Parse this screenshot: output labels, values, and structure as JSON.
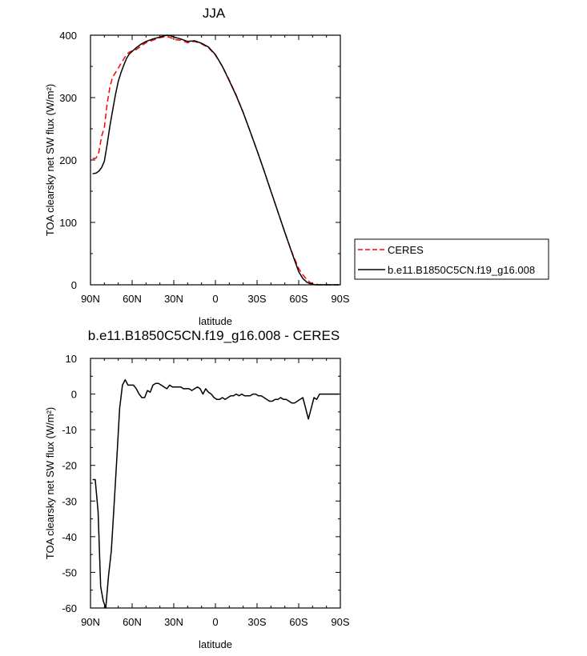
{
  "chart_data": [
    {
      "type": "line",
      "title": "JJA",
      "xlabel": "latitude",
      "ylabel": "TOA clearsky net SW flux (W/m²)",
      "xlim": [
        90,
        -90
      ],
      "ylim": [
        0,
        400
      ],
      "xticks": [
        90,
        60,
        30,
        0,
        -30,
        -60,
        -90
      ],
      "xtick_labels": [
        "90N",
        "60N",
        "30N",
        "0",
        "30S",
        "60S",
        "90S"
      ],
      "yticks": [
        0,
        100,
        200,
        300,
        400
      ],
      "ytick_labels": [
        "0",
        "100",
        "200",
        "300",
        "400"
      ],
      "legend_position": "right",
      "series": [
        {
          "name": "CERES",
          "color": "#ff0000",
          "dash": "dashed",
          "x": [
            88.5,
            86,
            84,
            82,
            80,
            78,
            76,
            74,
            72,
            70,
            68,
            66,
            64,
            62,
            60,
            57,
            54,
            50,
            45,
            40,
            35,
            32,
            30,
            25,
            20,
            15,
            10,
            5,
            0,
            -5,
            -10,
            -15,
            -20,
            -25,
            -30,
            -35,
            -40,
            -45,
            -50,
            -55,
            -60,
            -63,
            -66,
            -68,
            -70,
            -72,
            -75,
            -80,
            -85,
            -89
          ],
          "values": [
            202,
            203,
            212,
            238,
            252,
            290,
            318,
            333,
            340,
            347,
            355,
            362,
            369,
            373,
            375,
            377,
            382,
            388,
            392,
            396,
            398,
            396,
            393,
            392,
            388,
            390,
            386,
            380,
            368,
            350,
            328,
            304,
            276,
            246,
            215,
            183,
            150,
            117,
            84,
            53,
            26,
            16,
            8,
            4,
            2,
            1,
            0,
            0,
            0,
            0
          ]
        },
        {
          "name": "b.e11.B1850C5CN.f19_g16.008",
          "color": "#000000",
          "dash": "solid",
          "x": [
            88.5,
            86,
            84,
            82,
            80,
            78,
            76,
            74,
            72,
            70,
            68,
            66,
            64,
            62,
            60,
            57,
            54,
            50,
            45,
            40,
            35,
            32,
            30,
            25,
            20,
            15,
            10,
            5,
            0,
            -5,
            -10,
            -15,
            -20,
            -25,
            -30,
            -35,
            -40,
            -45,
            -50,
            -55,
            -60,
            -63,
            -66,
            -68,
            -70,
            -72,
            -75,
            -80,
            -85,
            -89
          ],
          "values": [
            178,
            179,
            182,
            188,
            198,
            225,
            255,
            280,
            305,
            326,
            340,
            352,
            363,
            370,
            374,
            380,
            385,
            390,
            394,
            397,
            400,
            399,
            397,
            394,
            390,
            391,
            387,
            381,
            369,
            350,
            327,
            303,
            276,
            246,
            215,
            183,
            150,
            117,
            84,
            52,
            21,
            10,
            4,
            2,
            1,
            0,
            0,
            0,
            0,
            0
          ]
        }
      ]
    },
    {
      "type": "line",
      "title": "b.e11.B1850C5CN.f19_g16.008 - CERES",
      "xlabel": "latitude",
      "ylabel": "TOA clearsky net SW flux (W/m²)",
      "xlim": [
        90,
        -90
      ],
      "ylim": [
        -60,
        10
      ],
      "xticks": [
        90,
        60,
        30,
        0,
        -30,
        -60,
        -90
      ],
      "xtick_labels": [
        "90N",
        "60N",
        "30N",
        "0",
        "30S",
        "60S",
        "90S"
      ],
      "yticks": [
        10,
        0,
        -10,
        -20,
        -30,
        -40,
        -50,
        -60
      ],
      "ytick_labels": [
        "10",
        "0",
        "-10",
        "-20",
        "-30",
        "-40",
        "-50",
        "-60"
      ],
      "series": [
        {
          "color": "#000000",
          "dash": "solid",
          "x": [
            88.5,
            86.6,
            84.5,
            82.7,
            80.8,
            79,
            77,
            75,
            73,
            71,
            69,
            67,
            65,
            63,
            61,
            59,
            57,
            55,
            53,
            51,
            49,
            47,
            45,
            43,
            41,
            39,
            37,
            35,
            33,
            31,
            29,
            27,
            25,
            23,
            21,
            19,
            17,
            15,
            13,
            11,
            9,
            7,
            5,
            3,
            1,
            -1,
            -3,
            -5,
            -7,
            -9,
            -11,
            -13,
            -15,
            -17,
            -19,
            -21,
            -23,
            -25,
            -27,
            -29,
            -31,
            -33,
            -35,
            -37,
            -39,
            -41,
            -43,
            -45,
            -47,
            -49,
            -51,
            -53,
            -55,
            -57,
            -59,
            -61,
            -63,
            -65,
            -67,
            -69,
            -71,
            -73,
            -75,
            -77,
            -80,
            -85,
            -89
          ],
          "values": [
            -24,
            -24,
            -33,
            -54,
            -58,
            -60,
            -51,
            -44,
            -31,
            -18,
            -4,
            2.5,
            4,
            2.5,
            2.5,
            2.5,
            1.5,
            0,
            -1,
            -1,
            1,
            0.5,
            2.5,
            3,
            3,
            2.5,
            2,
            1.5,
            2.5,
            2,
            2,
            2,
            2,
            1.5,
            1.5,
            1.5,
            1,
            1.5,
            2,
            1.5,
            0,
            1.5,
            0.5,
            0,
            -1,
            -1.5,
            -1.5,
            -1,
            -1.5,
            -1,
            -0.5,
            -0.5,
            0,
            -0.5,
            0,
            -0.5,
            -0.5,
            -0.5,
            0,
            0,
            -0.5,
            -0.5,
            -1,
            -1.5,
            -2,
            -2,
            -1.5,
            -1.5,
            -1,
            -1.5,
            -1.5,
            -2,
            -2.5,
            -2.5,
            -2,
            -1.5,
            -1,
            -4,
            -7,
            -4,
            -1,
            -1.5,
            0,
            0,
            0,
            0,
            0
          ]
        }
      ]
    }
  ]
}
